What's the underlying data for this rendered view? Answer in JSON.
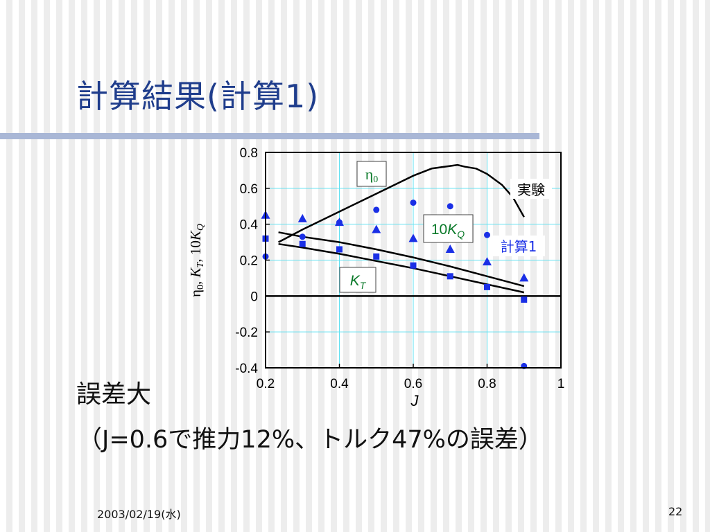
{
  "slide": {
    "title": "計算結果(計算1)",
    "body_line1": "誤差大",
    "body_line2": "（J=0.6で推力12%、トルク47%の誤差）",
    "footer_date": "2003/02/19(水)",
    "page_number": "22"
  },
  "chart_data": {
    "type": "line",
    "title": "",
    "xlabel": "J",
    "ylabel": "η0, KT, 10KQ",
    "xlim": [
      0.2,
      1.0
    ],
    "ylim": [
      -0.4,
      0.8
    ],
    "x_ticks": [
      "0.2",
      "0.4",
      "0.6",
      "0.8",
      "1"
    ],
    "y_ticks": [
      "0.8",
      "0.6",
      "0.4",
      "0.2",
      "0",
      "-0.2",
      "-0.4"
    ],
    "grid": true,
    "colors": {
      "experiment_lines": "#000000",
      "calc_markers": "#1a2fe6",
      "grid": "#5fe0f0",
      "label_green": "#0b7a2a",
      "label_blue": "#1a2fe6"
    },
    "series": [
      {
        "name": "実験",
        "group": "experiment",
        "quantity": "eta0",
        "style": "line",
        "points": [
          [
            0.235,
            0.3
          ],
          [
            0.3,
            0.37
          ],
          [
            0.4,
            0.47
          ],
          [
            0.5,
            0.57
          ],
          [
            0.6,
            0.67
          ],
          [
            0.65,
            0.71
          ],
          [
            0.72,
            0.73
          ],
          [
            0.74,
            0.72
          ],
          [
            0.77,
            0.71
          ],
          [
            0.8,
            0.68
          ],
          [
            0.84,
            0.62
          ],
          [
            0.87,
            0.55
          ],
          [
            0.9,
            0.44
          ]
        ]
      },
      {
        "name": "",
        "group": "experiment",
        "quantity": "10KQ",
        "style": "line",
        "points": [
          [
            0.235,
            0.355
          ],
          [
            0.3,
            0.33
          ],
          [
            0.4,
            0.3
          ],
          [
            0.5,
            0.26
          ],
          [
            0.6,
            0.215
          ],
          [
            0.7,
            0.165
          ],
          [
            0.8,
            0.11
          ],
          [
            0.9,
            0.055
          ]
        ]
      },
      {
        "name": "",
        "group": "experiment",
        "quantity": "KT",
        "style": "line",
        "points": [
          [
            0.235,
            0.29
          ],
          [
            0.3,
            0.27
          ],
          [
            0.4,
            0.235
          ],
          [
            0.5,
            0.195
          ],
          [
            0.6,
            0.155
          ],
          [
            0.7,
            0.11
          ],
          [
            0.8,
            0.065
          ],
          [
            0.9,
            0.02
          ]
        ]
      },
      {
        "name": "計算1",
        "group": "calculation",
        "quantity": "eta0",
        "marker": "circle",
        "points": [
          [
            0.2,
            0.22
          ],
          [
            0.3,
            0.33
          ],
          [
            0.4,
            0.41
          ],
          [
            0.5,
            0.48
          ],
          [
            0.6,
            0.52
          ],
          [
            0.7,
            0.5
          ],
          [
            0.8,
            0.34
          ],
          [
            0.9,
            -0.39
          ]
        ]
      },
      {
        "name": "",
        "group": "calculation",
        "quantity": "10KQ",
        "marker": "triangle",
        "points": [
          [
            0.2,
            0.45
          ],
          [
            0.3,
            0.43
          ],
          [
            0.4,
            0.41
          ],
          [
            0.5,
            0.37
          ],
          [
            0.6,
            0.32
          ],
          [
            0.7,
            0.26
          ],
          [
            0.8,
            0.19
          ],
          [
            0.9,
            0.1
          ]
        ]
      },
      {
        "name": "",
        "group": "calculation",
        "quantity": "KT",
        "marker": "square",
        "points": [
          [
            0.2,
            0.32
          ],
          [
            0.3,
            0.29
          ],
          [
            0.4,
            0.26
          ],
          [
            0.5,
            0.22
          ],
          [
            0.6,
            0.17
          ],
          [
            0.7,
            0.11
          ],
          [
            0.8,
            0.05
          ],
          [
            0.9,
            -0.02
          ]
        ]
      }
    ],
    "annotations": {
      "eta0": "η0",
      "tenKQ": "10KQ",
      "KT": "KT",
      "experiment": "実験",
      "calc": "計算1"
    }
  }
}
